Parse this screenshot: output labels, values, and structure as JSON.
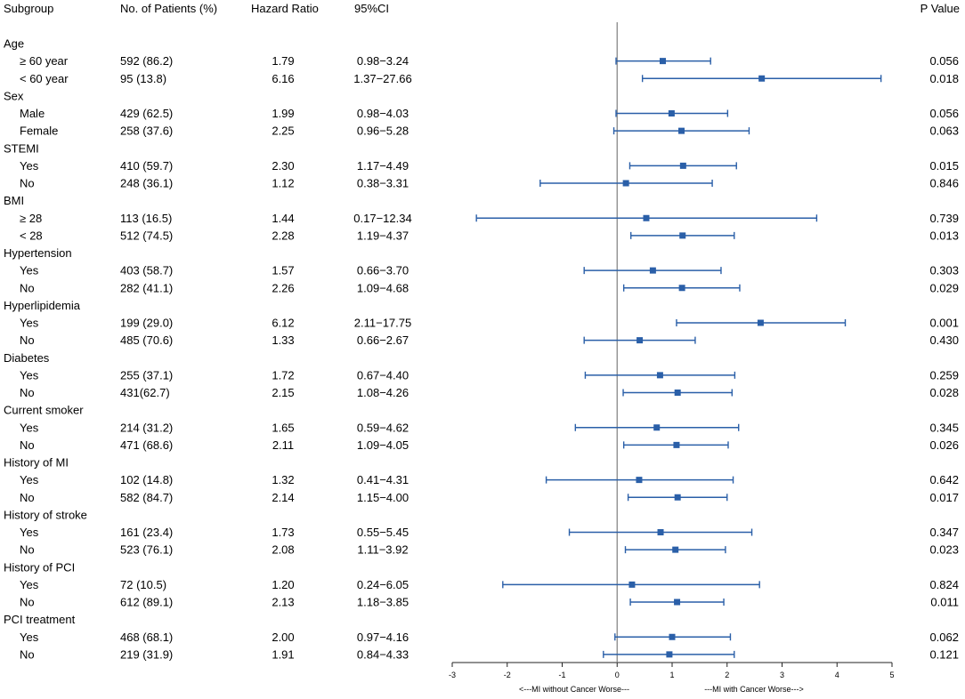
{
  "chart_data": {
    "type": "forest",
    "x_axis": {
      "min": -3,
      "max": 5,
      "ticks": [
        "-3",
        "-2",
        "-1",
        "0",
        "1",
        "2",
        "3",
        "4",
        "5"
      ],
      "left_label": "<---MI without Cancer Worse---",
      "right_label": "---MI with Cancer Worse--->",
      "reference_line": 0
    },
    "headers": {
      "subgroup": "Subgroup",
      "patients": "No. of Patients (%)",
      "hr": "Hazard Ratio",
      "ci": "95%CI",
      "p": "P Value"
    },
    "rows": [
      {
        "kind": "group",
        "label": "Age"
      },
      {
        "kind": "item",
        "label": "≥ 60 year",
        "patients": "592 (86.2)",
        "hr": "1.79",
        "ci": "0.98−3.24",
        "p": "0.056",
        "est": 0.83,
        "lo": -0.02,
        "hi": 1.7
      },
      {
        "kind": "item",
        "label": "< 60 year",
        "patients": "95 (13.8)",
        "hr": "6.16",
        "ci": "1.37−27.66",
        "p": "0.018",
        "est": 2.63,
        "lo": 0.46,
        "hi": 4.8
      },
      {
        "kind": "group",
        "label": "Sex"
      },
      {
        "kind": "item",
        "label": "Male",
        "patients": "429 (62.5)",
        "hr": "1.99",
        "ci": "0.98−4.03",
        "p": "0.056",
        "est": 0.99,
        "lo": -0.02,
        "hi": 2.01
      },
      {
        "kind": "item",
        "label": "Female",
        "patients": "258 (37.6)",
        "hr": "2.25",
        "ci": "0.96−5.28",
        "p": "0.063",
        "est": 1.17,
        "lo": -0.06,
        "hi": 2.4
      },
      {
        "kind": "group",
        "label": "STEMI"
      },
      {
        "kind": "item",
        "label": "Yes",
        "patients": "410 (59.7)",
        "hr": "2.30",
        "ci": "1.17−4.49",
        "p": "0.015",
        "est": 1.2,
        "lo": 0.23,
        "hi": 2.17
      },
      {
        "kind": "item",
        "label": "No",
        "patients": "248 (36.1)",
        "hr": "1.12",
        "ci": "0.38−3.31",
        "p": "0.846",
        "est": 0.16,
        "lo": -1.4,
        "hi": 1.73
      },
      {
        "kind": "group",
        "label": "BMI"
      },
      {
        "kind": "item",
        "label": "≥ 28",
        "patients": "113 (16.5)",
        "hr": "1.44",
        "ci": "0.17−12.34",
        "p": "0.739",
        "est": 0.53,
        "lo": -2.56,
        "hi": 3.63
      },
      {
        "kind": "item",
        "label": "< 28",
        "patients": "512 (74.5)",
        "hr": "2.28",
        "ci": "1.19−4.37",
        "p": "0.013",
        "est": 1.19,
        "lo": 0.25,
        "hi": 2.13
      },
      {
        "kind": "group",
        "label": "Hypertension"
      },
      {
        "kind": "item",
        "label": "Yes",
        "patients": "403 (58.7)",
        "hr": "1.57",
        "ci": "0.66−3.70",
        "p": "0.303",
        "est": 0.65,
        "lo": -0.6,
        "hi": 1.89
      },
      {
        "kind": "item",
        "label": "No",
        "patients": "282 (41.1)",
        "hr": "2.26",
        "ci": "1.09−4.68",
        "p": "0.029",
        "est": 1.18,
        "lo": 0.12,
        "hi": 2.23
      },
      {
        "kind": "group",
        "label": "Hyperlipidemia"
      },
      {
        "kind": "item",
        "label": "Yes",
        "patients": "199 (29.0)",
        "hr": "6.12",
        "ci": "2.11−17.75",
        "p": "0.001",
        "est": 2.61,
        "lo": 1.08,
        "hi": 4.15
      },
      {
        "kind": "item",
        "label": "No",
        "patients": "485 (70.6)",
        "hr": "1.33",
        "ci": "0.66−2.67",
        "p": "0.430",
        "est": 0.41,
        "lo": -0.6,
        "hi": 1.42
      },
      {
        "kind": "group",
        "label": "Diabetes"
      },
      {
        "kind": "item",
        "label": "Yes",
        "patients": "255 (37.1)",
        "hr": "1.72",
        "ci": "0.67−4.40",
        "p": "0.259",
        "est": 0.78,
        "lo": -0.58,
        "hi": 2.14
      },
      {
        "kind": "item",
        "label": "No",
        "patients": "431(62.7)",
        "hr": "2.15",
        "ci": "1.08−4.26",
        "p": "0.028",
        "est": 1.1,
        "lo": 0.11,
        "hi": 2.09
      },
      {
        "kind": "group",
        "label": "Current smoker"
      },
      {
        "kind": "item",
        "label": "Yes",
        "patients": "214 (31.2)",
        "hr": "1.65",
        "ci": "0.59−4.62",
        "p": "0.345",
        "est": 0.72,
        "lo": -0.76,
        "hi": 2.21
      },
      {
        "kind": "item",
        "label": "No",
        "patients": "471 (68.6)",
        "hr": "2.11",
        "ci": "1.09−4.05",
        "p": "0.026",
        "est": 1.08,
        "lo": 0.12,
        "hi": 2.02
      },
      {
        "kind": "group",
        "label": "History of MI"
      },
      {
        "kind": "item",
        "label": "Yes",
        "patients": "102 (14.8)",
        "hr": "1.32",
        "ci": "0.41−4.31",
        "p": "0.642",
        "est": 0.4,
        "lo": -1.29,
        "hi": 2.11
      },
      {
        "kind": "item",
        "label": "No",
        "patients": "582 (84.7)",
        "hr": "2.14",
        "ci": "1.15−4.00",
        "p": "0.017",
        "est": 1.1,
        "lo": 0.2,
        "hi": 2.0
      },
      {
        "kind": "group",
        "label": "History of stroke"
      },
      {
        "kind": "item",
        "label": "Yes",
        "patients": "161 (23.4)",
        "hr": "1.73",
        "ci": "0.55−5.45",
        "p": "0.347",
        "est": 0.79,
        "lo": -0.87,
        "hi": 2.45
      },
      {
        "kind": "item",
        "label": "No",
        "patients": "523 (76.1)",
        "hr": "2.08",
        "ci": "1.11−3.92",
        "p": "0.023",
        "est": 1.06,
        "lo": 0.15,
        "hi": 1.97
      },
      {
        "kind": "group",
        "label": "History of PCI"
      },
      {
        "kind": "item",
        "label": "Yes",
        "patients": "72 (10.5)",
        "hr": "1.20",
        "ci": "0.24−6.05",
        "p": "0.824",
        "est": 0.27,
        "lo": -2.08,
        "hi": 2.59
      },
      {
        "kind": "item",
        "label": "No",
        "patients": "612 (89.1)",
        "hr": "2.13",
        "ci": "1.18−3.85",
        "p": "0.011",
        "est": 1.09,
        "lo": 0.24,
        "hi": 1.94
      },
      {
        "kind": "group",
        "label": "PCI treatment"
      },
      {
        "kind": "item",
        "label": "Yes",
        "patients": "468 (68.1)",
        "hr": "2.00",
        "ci": "0.97−4.16",
        "p": "0.062",
        "est": 1.0,
        "lo": -0.04,
        "hi": 2.06
      },
      {
        "kind": "item",
        "label": "No",
        "patients": "219 (31.9)",
        "hr": "1.91",
        "ci": "0.84−4.33",
        "p": "0.121",
        "est": 0.95,
        "lo": -0.25,
        "hi": 2.13
      }
    ]
  },
  "colors": {
    "marker": "#2a5fa8",
    "text": "#111111",
    "ref_line": "#888888",
    "axis": "#222222"
  }
}
